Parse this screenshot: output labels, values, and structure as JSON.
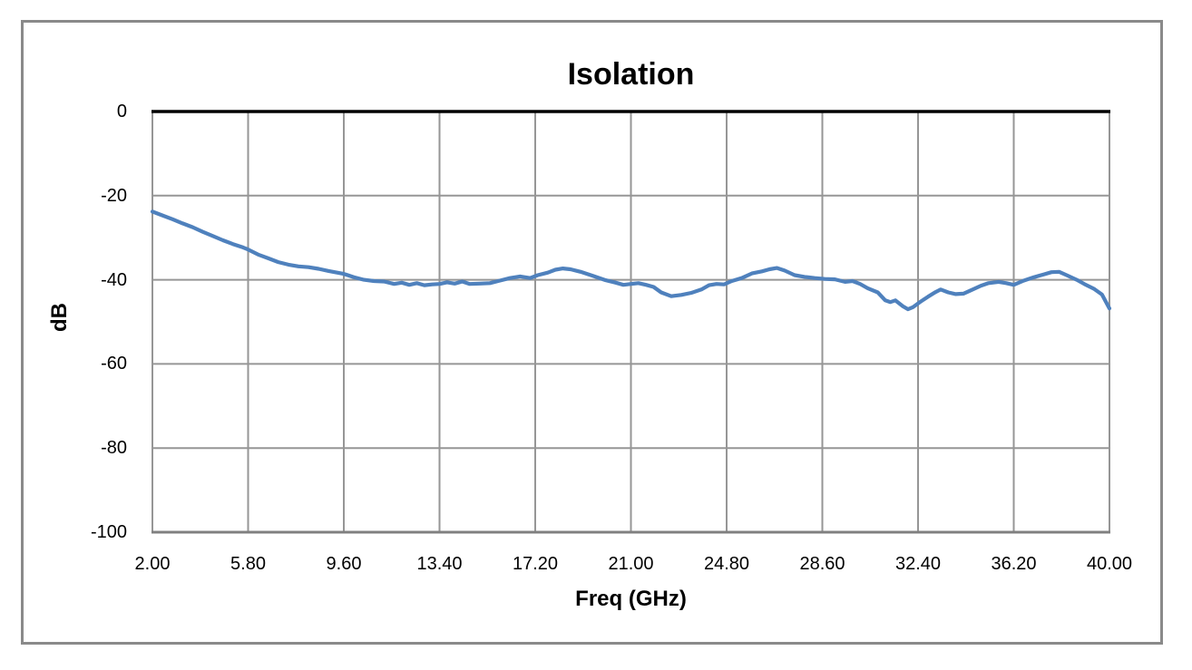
{
  "chart_data": {
    "type": "line",
    "title": "Isolation",
    "xlabel": "Freq (GHz)",
    "ylabel": "dB",
    "xlim": [
      2,
      40
    ],
    "ylim": [
      -100,
      0
    ],
    "grid": true,
    "legend": false,
    "x_ticks": [
      "2.00",
      "5.80",
      "9.60",
      "13.40",
      "17.20",
      "21.00",
      "24.80",
      "28.60",
      "32.40",
      "36.20",
      "40.00"
    ],
    "x_tick_values": [
      2,
      5.8,
      9.6,
      13.4,
      17.2,
      21,
      24.8,
      28.6,
      32.4,
      36.2,
      40
    ],
    "y_ticks": [
      "0",
      "-20",
      "-40",
      "-60",
      "-80",
      "-100"
    ],
    "y_tick_values": [
      0,
      -20,
      -40,
      -60,
      -80,
      -100
    ],
    "series": [
      {
        "name": "Isolation",
        "color": "#4F81BD",
        "x": [
          2.0,
          2.4,
          2.8,
          3.2,
          3.6,
          4.0,
          4.4,
          4.8,
          5.2,
          5.6,
          5.8,
          6.2,
          6.6,
          7.0,
          7.4,
          7.8,
          8.2,
          8.6,
          9.0,
          9.6,
          10.0,
          10.4,
          10.8,
          11.2,
          11.6,
          11.9,
          12.2,
          12.5,
          12.8,
          13.1,
          13.4,
          13.7,
          14.0,
          14.3,
          14.6,
          15.0,
          15.4,
          15.8,
          16.2,
          16.6,
          17.0,
          17.3,
          17.7,
          18.0,
          18.3,
          18.6,
          19.0,
          19.5,
          20.0,
          20.4,
          20.7,
          21.0,
          21.3,
          21.6,
          21.9,
          22.2,
          22.6,
          23.0,
          23.4,
          23.8,
          24.1,
          24.4,
          24.7,
          25.0,
          25.4,
          25.8,
          26.2,
          26.5,
          26.8,
          27.1,
          27.5,
          27.9,
          28.3,
          28.7,
          29.1,
          29.5,
          29.8,
          30.1,
          30.4,
          30.8,
          31.1,
          31.3,
          31.5,
          31.8,
          32.0,
          32.2,
          32.5,
          32.8,
          33.1,
          33.3,
          33.6,
          33.9,
          34.2,
          34.5,
          34.9,
          35.2,
          35.6,
          35.9,
          36.2,
          36.6,
          37.0,
          37.4,
          37.7,
          38.0,
          38.3,
          38.7,
          39.0,
          39.4,
          39.7,
          40.0
        ],
        "y": [
          -23.8,
          -24.7,
          -25.6,
          -26.6,
          -27.5,
          -28.6,
          -29.6,
          -30.6,
          -31.5,
          -32.3,
          -32.8,
          -34.0,
          -34.9,
          -35.8,
          -36.4,
          -36.8,
          -37.0,
          -37.4,
          -37.9,
          -38.6,
          -39.4,
          -40.0,
          -40.3,
          -40.4,
          -41.0,
          -40.7,
          -41.2,
          -40.8,
          -41.3,
          -41.1,
          -41.0,
          -40.6,
          -40.9,
          -40.4,
          -41.0,
          -40.9,
          -40.8,
          -40.2,
          -39.6,
          -39.2,
          -39.6,
          -38.9,
          -38.3,
          -37.6,
          -37.3,
          -37.5,
          -38.1,
          -39.1,
          -40.1,
          -40.7,
          -41.2,
          -41.0,
          -40.8,
          -41.2,
          -41.7,
          -43.0,
          -43.9,
          -43.6,
          -43.1,
          -42.3,
          -41.3,
          -41.0,
          -41.1,
          -40.3,
          -39.6,
          -38.5,
          -38.0,
          -37.5,
          -37.2,
          -37.8,
          -38.9,
          -39.3,
          -39.6,
          -39.8,
          -39.9,
          -40.5,
          -40.3,
          -41.0,
          -42.0,
          -43.0,
          -44.9,
          -45.3,
          -44.9,
          -46.3,
          -47.0,
          -46.5,
          -45.2,
          -44.0,
          -42.9,
          -42.3,
          -43.0,
          -43.4,
          -43.3,
          -42.5,
          -41.4,
          -40.8,
          -40.5,
          -40.8,
          -41.2,
          -40.2,
          -39.4,
          -38.7,
          -38.2,
          -38.1,
          -38.9,
          -40.0,
          -41.0,
          -42.2,
          -43.5,
          -46.8
        ]
      }
    ],
    "colors": {
      "series": "#4F81BD",
      "gridline": "#969696",
      "axis_zero_line": "#000000",
      "bottom_line": "#808080",
      "frame_border": "#8A8A8A",
      "background": "#FFFFFF",
      "text": "#000000"
    }
  }
}
